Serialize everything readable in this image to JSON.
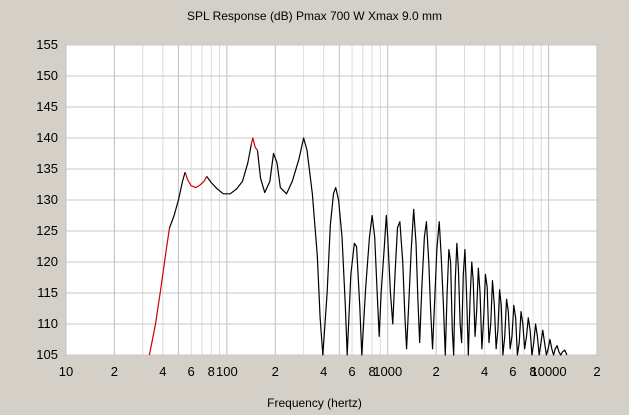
{
  "chart_data": {
    "type": "line",
    "title": "SPL Response (dB)   Pmax 700 W   Xmax 9.0 mm",
    "xlabel": "Frequency (hertz)",
    "ylabel": "",
    "x_scale": "log",
    "xlim": [
      10,
      20000
    ],
    "ylim": [
      105,
      155
    ],
    "grid": true,
    "y_ticks": [
      105,
      110,
      115,
      120,
      125,
      130,
      135,
      140,
      145,
      150,
      155
    ],
    "x_tick_labels": [
      {
        "value": 10,
        "label": "10"
      },
      {
        "value": 20,
        "label": "2"
      },
      {
        "value": 40,
        "label": "4"
      },
      {
        "value": 60,
        "label": "6"
      },
      {
        "value": 80,
        "label": "8"
      },
      {
        "value": 100,
        "label": "100"
      },
      {
        "value": 200,
        "label": "2"
      },
      {
        "value": 400,
        "label": "4"
      },
      {
        "value": 600,
        "label": "6"
      },
      {
        "value": 800,
        "label": "8"
      },
      {
        "value": 1000,
        "label": "1000"
      },
      {
        "value": 2000,
        "label": "2"
      },
      {
        "value": 4000,
        "label": "4"
      },
      {
        "value": 6000,
        "label": "6"
      },
      {
        "value": 8000,
        "label": "8"
      },
      {
        "value": 10000,
        "label": "10000"
      },
      {
        "value": 20000,
        "label": "2"
      }
    ],
    "series": [
      {
        "color": "#cc0000",
        "points": [
          [
            33,
            105
          ],
          [
            36,
            110
          ],
          [
            39,
            116
          ],
          [
            42,
            122
          ],
          [
            44,
            125.5
          ]
        ]
      },
      {
        "color": "#000000",
        "points": [
          [
            44,
            125.5
          ],
          [
            47,
            127.5
          ],
          [
            50,
            130
          ],
          [
            53,
            133
          ],
          [
            55,
            134.5
          ]
        ]
      },
      {
        "color": "#cc0000",
        "points": [
          [
            55,
            134.5
          ],
          [
            57,
            133.3
          ],
          [
            60,
            132.3
          ],
          [
            64,
            132
          ],
          [
            68,
            132.4
          ],
          [
            72,
            133
          ],
          [
            75,
            133.8
          ]
        ]
      },
      {
        "color": "#000000",
        "points": [
          [
            75,
            133.8
          ],
          [
            80,
            132.8
          ],
          [
            87,
            131.8
          ],
          [
            95,
            131
          ],
          [
            105,
            131
          ],
          [
            115,
            131.8
          ],
          [
            125,
            133
          ],
          [
            135,
            136
          ],
          [
            142,
            139
          ]
        ]
      },
      {
        "color": "#cc0000",
        "points": [
          [
            142,
            139
          ],
          [
            145,
            140
          ],
          [
            150,
            138.5
          ],
          [
            155,
            138
          ]
        ]
      },
      {
        "color": "#000000",
        "points": [
          [
            155,
            138
          ],
          [
            162,
            133.5
          ],
          [
            172,
            131.2
          ],
          [
            185,
            133
          ],
          [
            195,
            137.5
          ],
          [
            205,
            136
          ],
          [
            215,
            132
          ],
          [
            235,
            131
          ],
          [
            255,
            133
          ],
          [
            280,
            136.5
          ],
          [
            300,
            140
          ],
          [
            315,
            138
          ],
          [
            340,
            131
          ],
          [
            365,
            121
          ],
          [
            380,
            111
          ],
          [
            395,
            105
          ],
          [
            420,
            115
          ],
          [
            440,
            126
          ],
          [
            460,
            131
          ],
          [
            475,
            132
          ],
          [
            495,
            130
          ],
          [
            520,
            124
          ],
          [
            545,
            113
          ],
          [
            560,
            105
          ],
          [
            590,
            118
          ],
          [
            620,
            123
          ],
          [
            640,
            122.5
          ],
          [
            670,
            113
          ],
          [
            690,
            105
          ],
          [
            730,
            116
          ],
          [
            770,
            124
          ],
          [
            800,
            127.5
          ],
          [
            830,
            124
          ],
          [
            860,
            115
          ],
          [
            885,
            108
          ],
          [
            910,
            115
          ],
          [
            950,
            122
          ],
          [
            980,
            127.5
          ],
          [
            1000,
            124
          ],
          [
            1040,
            115
          ],
          [
            1075,
            110
          ],
          [
            1110,
            118
          ],
          [
            1150,
            125.5
          ],
          [
            1190,
            126.5
          ],
          [
            1240,
            120
          ],
          [
            1280,
            111
          ],
          [
            1310,
            106
          ],
          [
            1350,
            113
          ],
          [
            1400,
            122
          ],
          [
            1450,
            128.5
          ],
          [
            1500,
            123
          ],
          [
            1540,
            114
          ],
          [
            1580,
            107
          ],
          [
            1630,
            116
          ],
          [
            1690,
            124
          ],
          [
            1740,
            126.5
          ],
          [
            1800,
            120
          ],
          [
            1850,
            112
          ],
          [
            1900,
            106
          ],
          [
            1960,
            114
          ],
          [
            2020,
            122
          ],
          [
            2090,
            126.5
          ],
          [
            2150,
            121
          ],
          [
            2220,
            113
          ],
          [
            2280,
            105
          ],
          [
            2340,
            115
          ],
          [
            2400,
            122
          ],
          [
            2460,
            120
          ],
          [
            2520,
            109
          ],
          [
            2570,
            105
          ],
          [
            2630,
            117
          ],
          [
            2690,
            123
          ],
          [
            2750,
            119
          ],
          [
            2820,
            110
          ],
          [
            2880,
            107
          ],
          [
            2950,
            118
          ],
          [
            3020,
            122
          ],
          [
            3090,
            115
          ],
          [
            3170,
            105
          ],
          [
            3250,
            114
          ],
          [
            3330,
            120
          ],
          [
            3400,
            117
          ],
          [
            3490,
            108
          ],
          [
            3570,
            112
          ],
          [
            3660,
            119
          ],
          [
            3750,
            115
          ],
          [
            3850,
            106
          ],
          [
            3950,
            111
          ],
          [
            4050,
            118
          ],
          [
            4150,
            116
          ],
          [
            4260,
            107
          ],
          [
            4370,
            110
          ],
          [
            4480,
            117
          ],
          [
            4600,
            113
          ],
          [
            4720,
            106
          ],
          [
            4840,
            109
          ],
          [
            4960,
            115.5
          ],
          [
            5080,
            113
          ],
          [
            5200,
            105
          ],
          [
            5340,
            108
          ],
          [
            5480,
            114
          ],
          [
            5620,
            112
          ],
          [
            5770,
            106
          ],
          [
            5920,
            108
          ],
          [
            6080,
            113
          ],
          [
            6240,
            111
          ],
          [
            6400,
            105
          ],
          [
            6570,
            107
          ],
          [
            6740,
            112
          ],
          [
            6920,
            110
          ],
          [
            7100,
            106
          ],
          [
            7290,
            108
          ],
          [
            7480,
            111
          ],
          [
            7680,
            109
          ],
          [
            7880,
            105
          ],
          [
            8090,
            107
          ],
          [
            8300,
            110
          ],
          [
            8520,
            108
          ],
          [
            8740,
            105
          ],
          [
            8970,
            107
          ],
          [
            9200,
            109
          ],
          [
            9440,
            107
          ],
          [
            9690,
            105
          ],
          [
            9940,
            106
          ],
          [
            10200,
            107.5
          ],
          [
            10470,
            106
          ],
          [
            10740,
            105
          ],
          [
            11000,
            106
          ],
          [
            11300,
            106.5
          ],
          [
            11600,
            105.5
          ],
          [
            11900,
            105
          ],
          [
            12200,
            105.5
          ],
          [
            12600,
            105.8
          ],
          [
            13000,
            105
          ]
        ]
      }
    ]
  }
}
